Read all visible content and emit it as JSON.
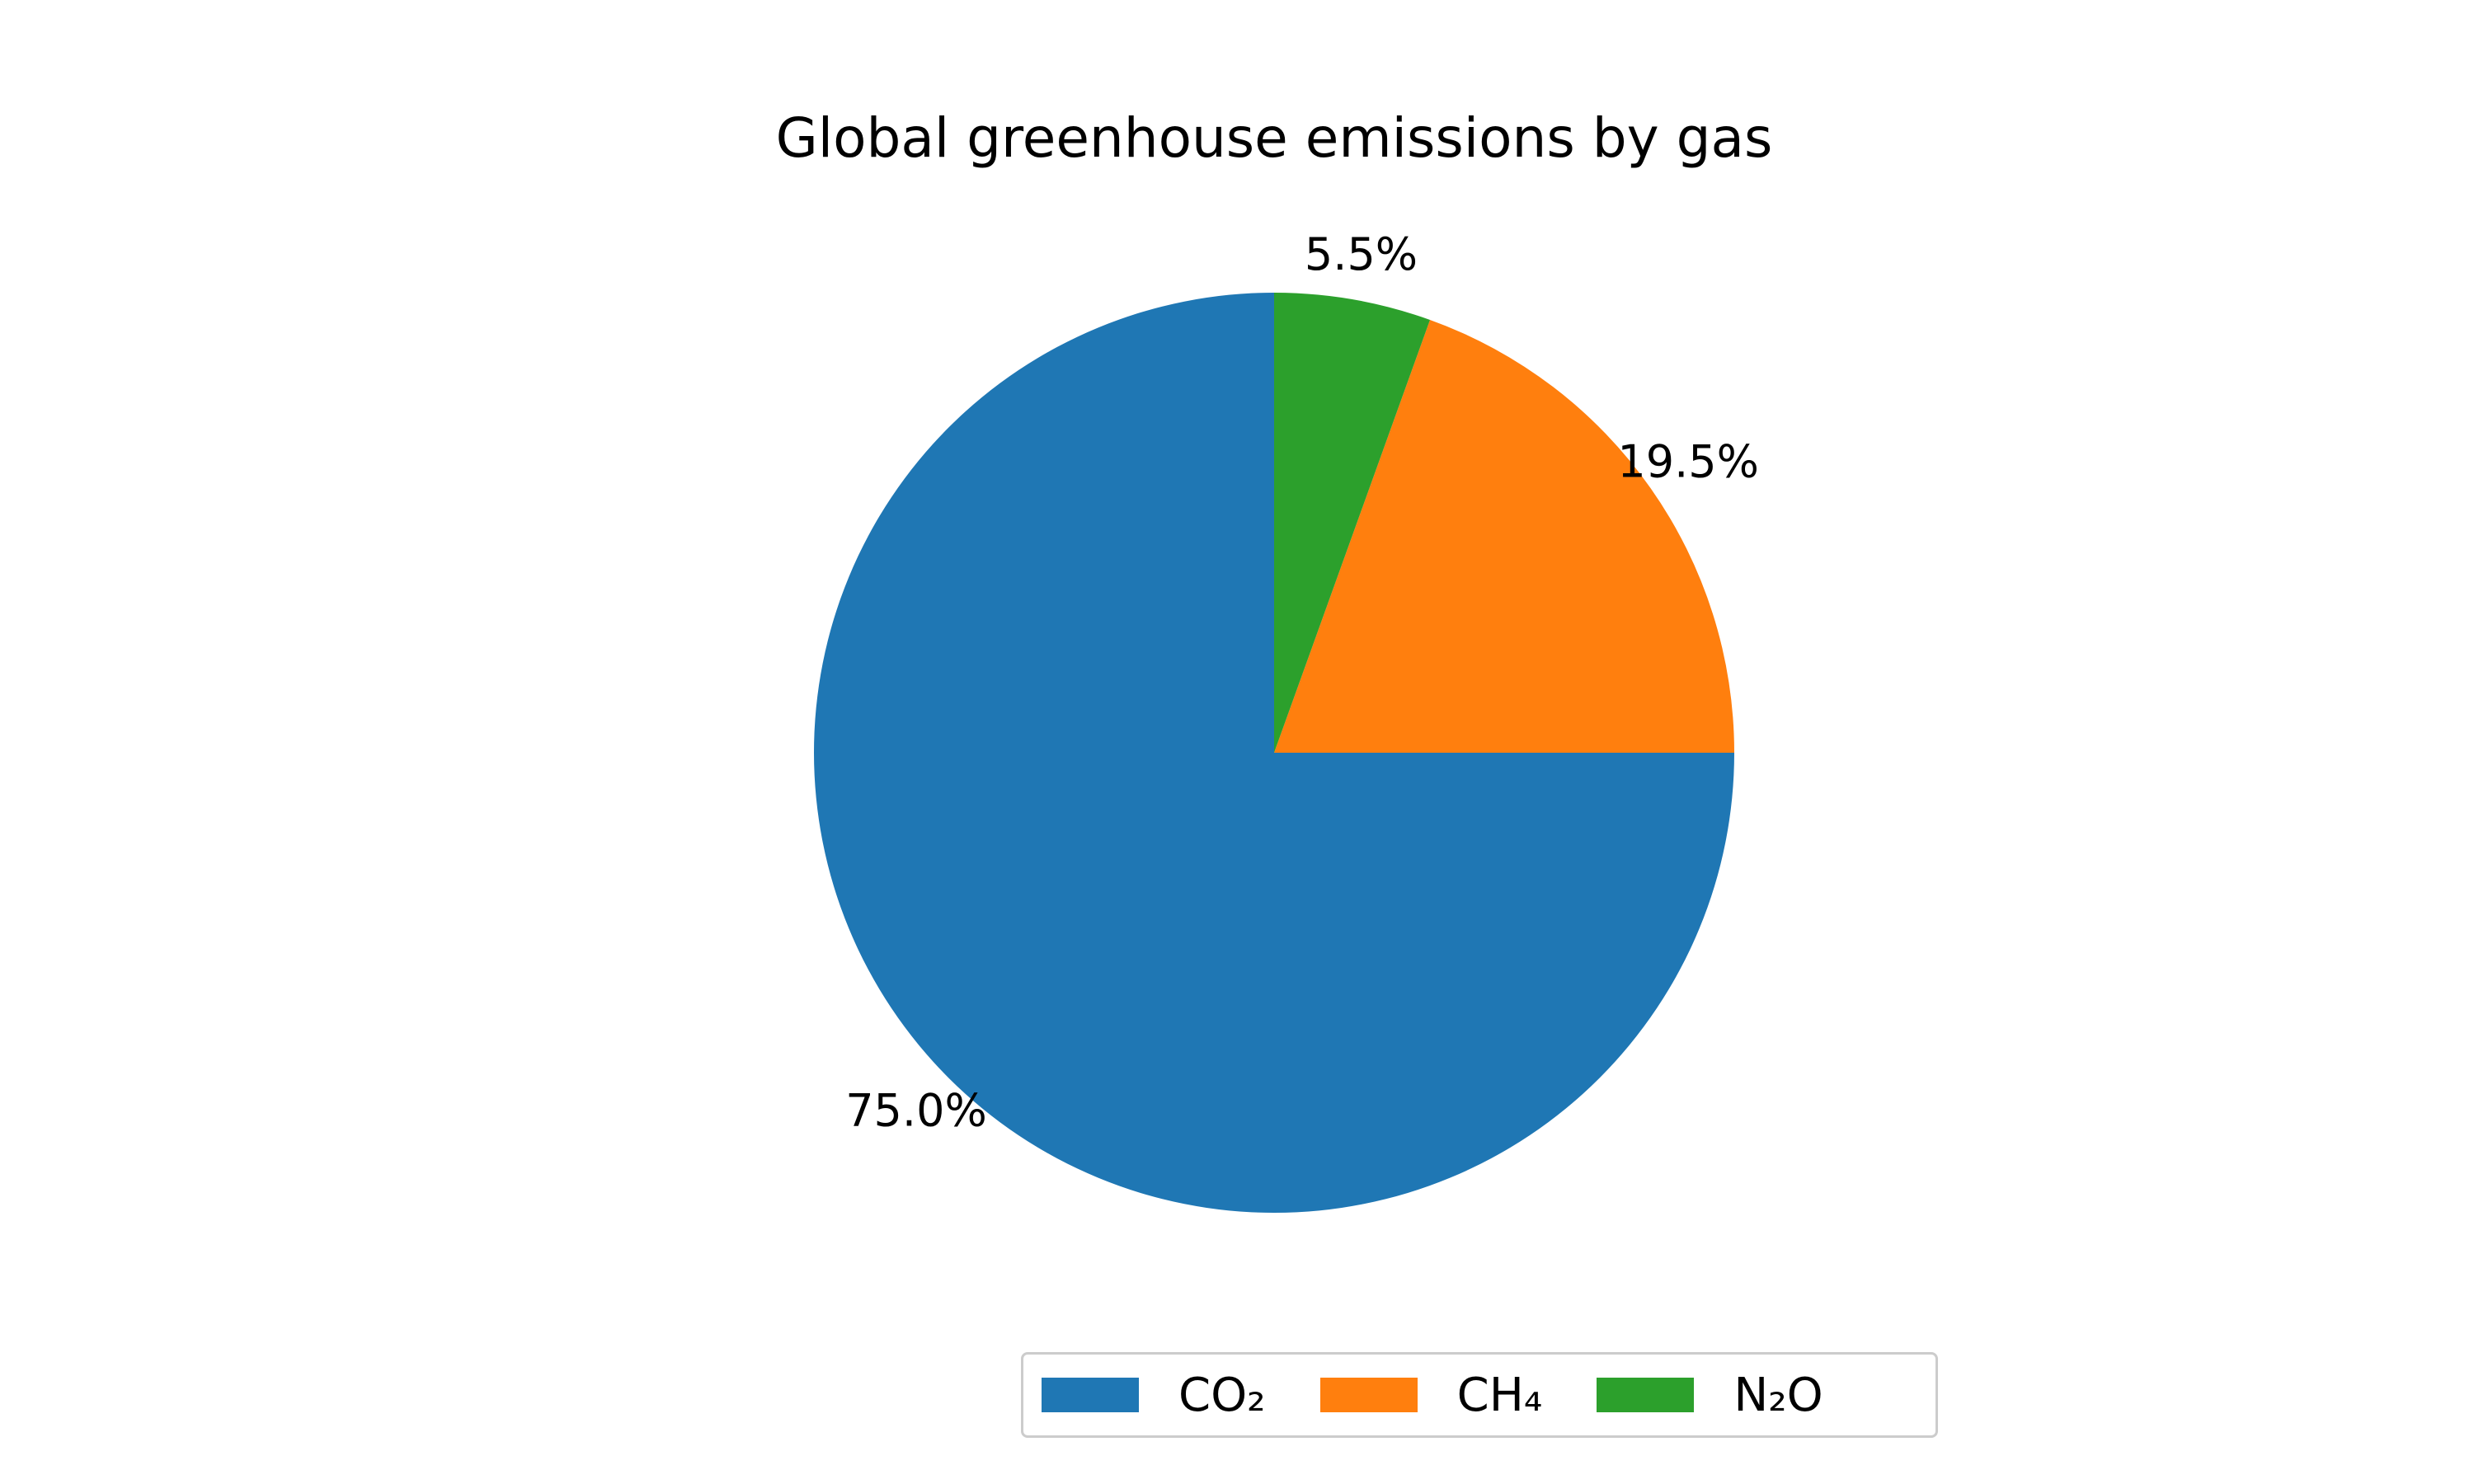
{
  "chart_data": {
    "type": "pie",
    "title": "Global greenhouse emissions by gas",
    "slices": [
      {
        "name": "CO₂",
        "value": 75.0,
        "label": "75.0%",
        "color": "#1f77b4"
      },
      {
        "name": "CH₄",
        "value": 19.5,
        "label": "19.5%",
        "color": "#ff7f0e"
      },
      {
        "name": "N₂O",
        "value": 5.5,
        "label": "5.5%",
        "color": "#2ca02c"
      }
    ],
    "start_angle_deg": 90,
    "direction": "counterclockwise",
    "legend": {
      "placement": "bottom-right",
      "entries": [
        "CO₂",
        "CH₄",
        "N₂O"
      ]
    }
  }
}
